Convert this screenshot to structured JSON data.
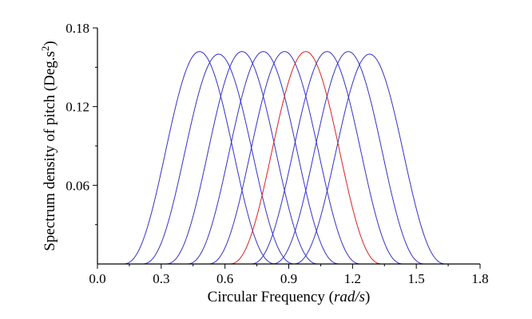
{
  "chart_data": {
    "type": "line",
    "title": "",
    "xlabel_prefix": "Circular Frequency (",
    "xlabel_units": "rad/s",
    "xlabel_suffix": ")",
    "ylabel_main": "Spectrum density of pitch (Deg.s",
    "ylabel_sup": "2",
    "ylabel_close": ")",
    "xlim": [
      0.0,
      1.8
    ],
    "ylim": [
      0.0,
      0.18
    ],
    "x_ticks": [
      0.0,
      0.3,
      0.6,
      0.9,
      1.2,
      1.5,
      1.8
    ],
    "x_tick_labels": [
      "0.0",
      "0.3",
      "0.6",
      "0.9",
      "1.2",
      "1.5",
      "1.8"
    ],
    "y_ticks": [
      0.06,
      0.12,
      0.18
    ],
    "y_tick_labels": [
      "0.06",
      "0.12",
      "0.18"
    ],
    "grid": false,
    "legend": "none",
    "curve_halfwidth": 0.36,
    "series": [
      {
        "peak_x": 0.48,
        "peak_y": 0.162,
        "color": "#3333cc"
      },
      {
        "peak_x": 0.57,
        "peak_y": 0.16,
        "color": "#3333cc"
      },
      {
        "peak_x": 0.68,
        "peak_y": 0.162,
        "color": "#3333cc"
      },
      {
        "peak_x": 0.78,
        "peak_y": 0.162,
        "color": "#3333cc"
      },
      {
        "peak_x": 0.88,
        "peak_y": 0.162,
        "color": "#3333cc"
      },
      {
        "peak_x": 0.98,
        "peak_y": 0.162,
        "color": "#e0201e"
      },
      {
        "peak_x": 1.08,
        "peak_y": 0.162,
        "color": "#3333cc"
      },
      {
        "peak_x": 1.18,
        "peak_y": 0.162,
        "color": "#3333cc"
      },
      {
        "peak_x": 1.28,
        "peak_y": 0.16,
        "color": "#3333cc"
      }
    ]
  }
}
